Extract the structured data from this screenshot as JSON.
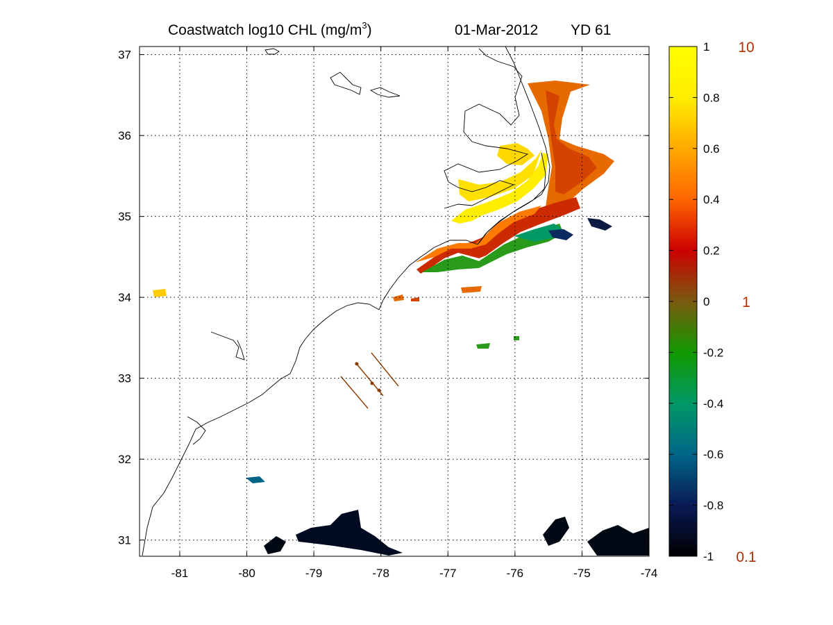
{
  "figure": {
    "title": {
      "product": "Coastwatch  log10  CHL (mg/m",
      "unit_exp": "3",
      "unit_close": ")",
      "date": "01-Mar-2012",
      "yearday": "YD 61"
    },
    "map": {
      "lon_range": [
        -81.6,
        -74
      ],
      "lat_range": [
        30.8,
        37.1
      ],
      "lon_ticks": [
        "-81",
        "-80",
        "-79",
        "-78",
        "-77",
        "-76",
        "-75",
        "-74"
      ],
      "lat_ticks": [
        "31",
        "32",
        "33",
        "34",
        "35",
        "36",
        "37"
      ],
      "grid": "dotted"
    },
    "colorbar": {
      "log10_range": [
        -1,
        1
      ],
      "tick_labels": [
        "1",
        "0.8",
        "0.6",
        "0.4",
        "0.2",
        "0",
        "-0.2",
        "-0.4",
        "-0.6",
        "-0.8",
        "-1"
      ],
      "chl_labels": [
        "10",
        "1",
        "0.1"
      ],
      "chl_label_color": "#b03000",
      "colormap": [
        "#000000",
        "#0a1a55",
        "#006688",
        "#009966",
        "#119900",
        "#7a5a10",
        "#cc0000",
        "#ff6600",
        "#ffaa00",
        "#ffee00",
        "#ffff00"
      ]
    }
  }
}
